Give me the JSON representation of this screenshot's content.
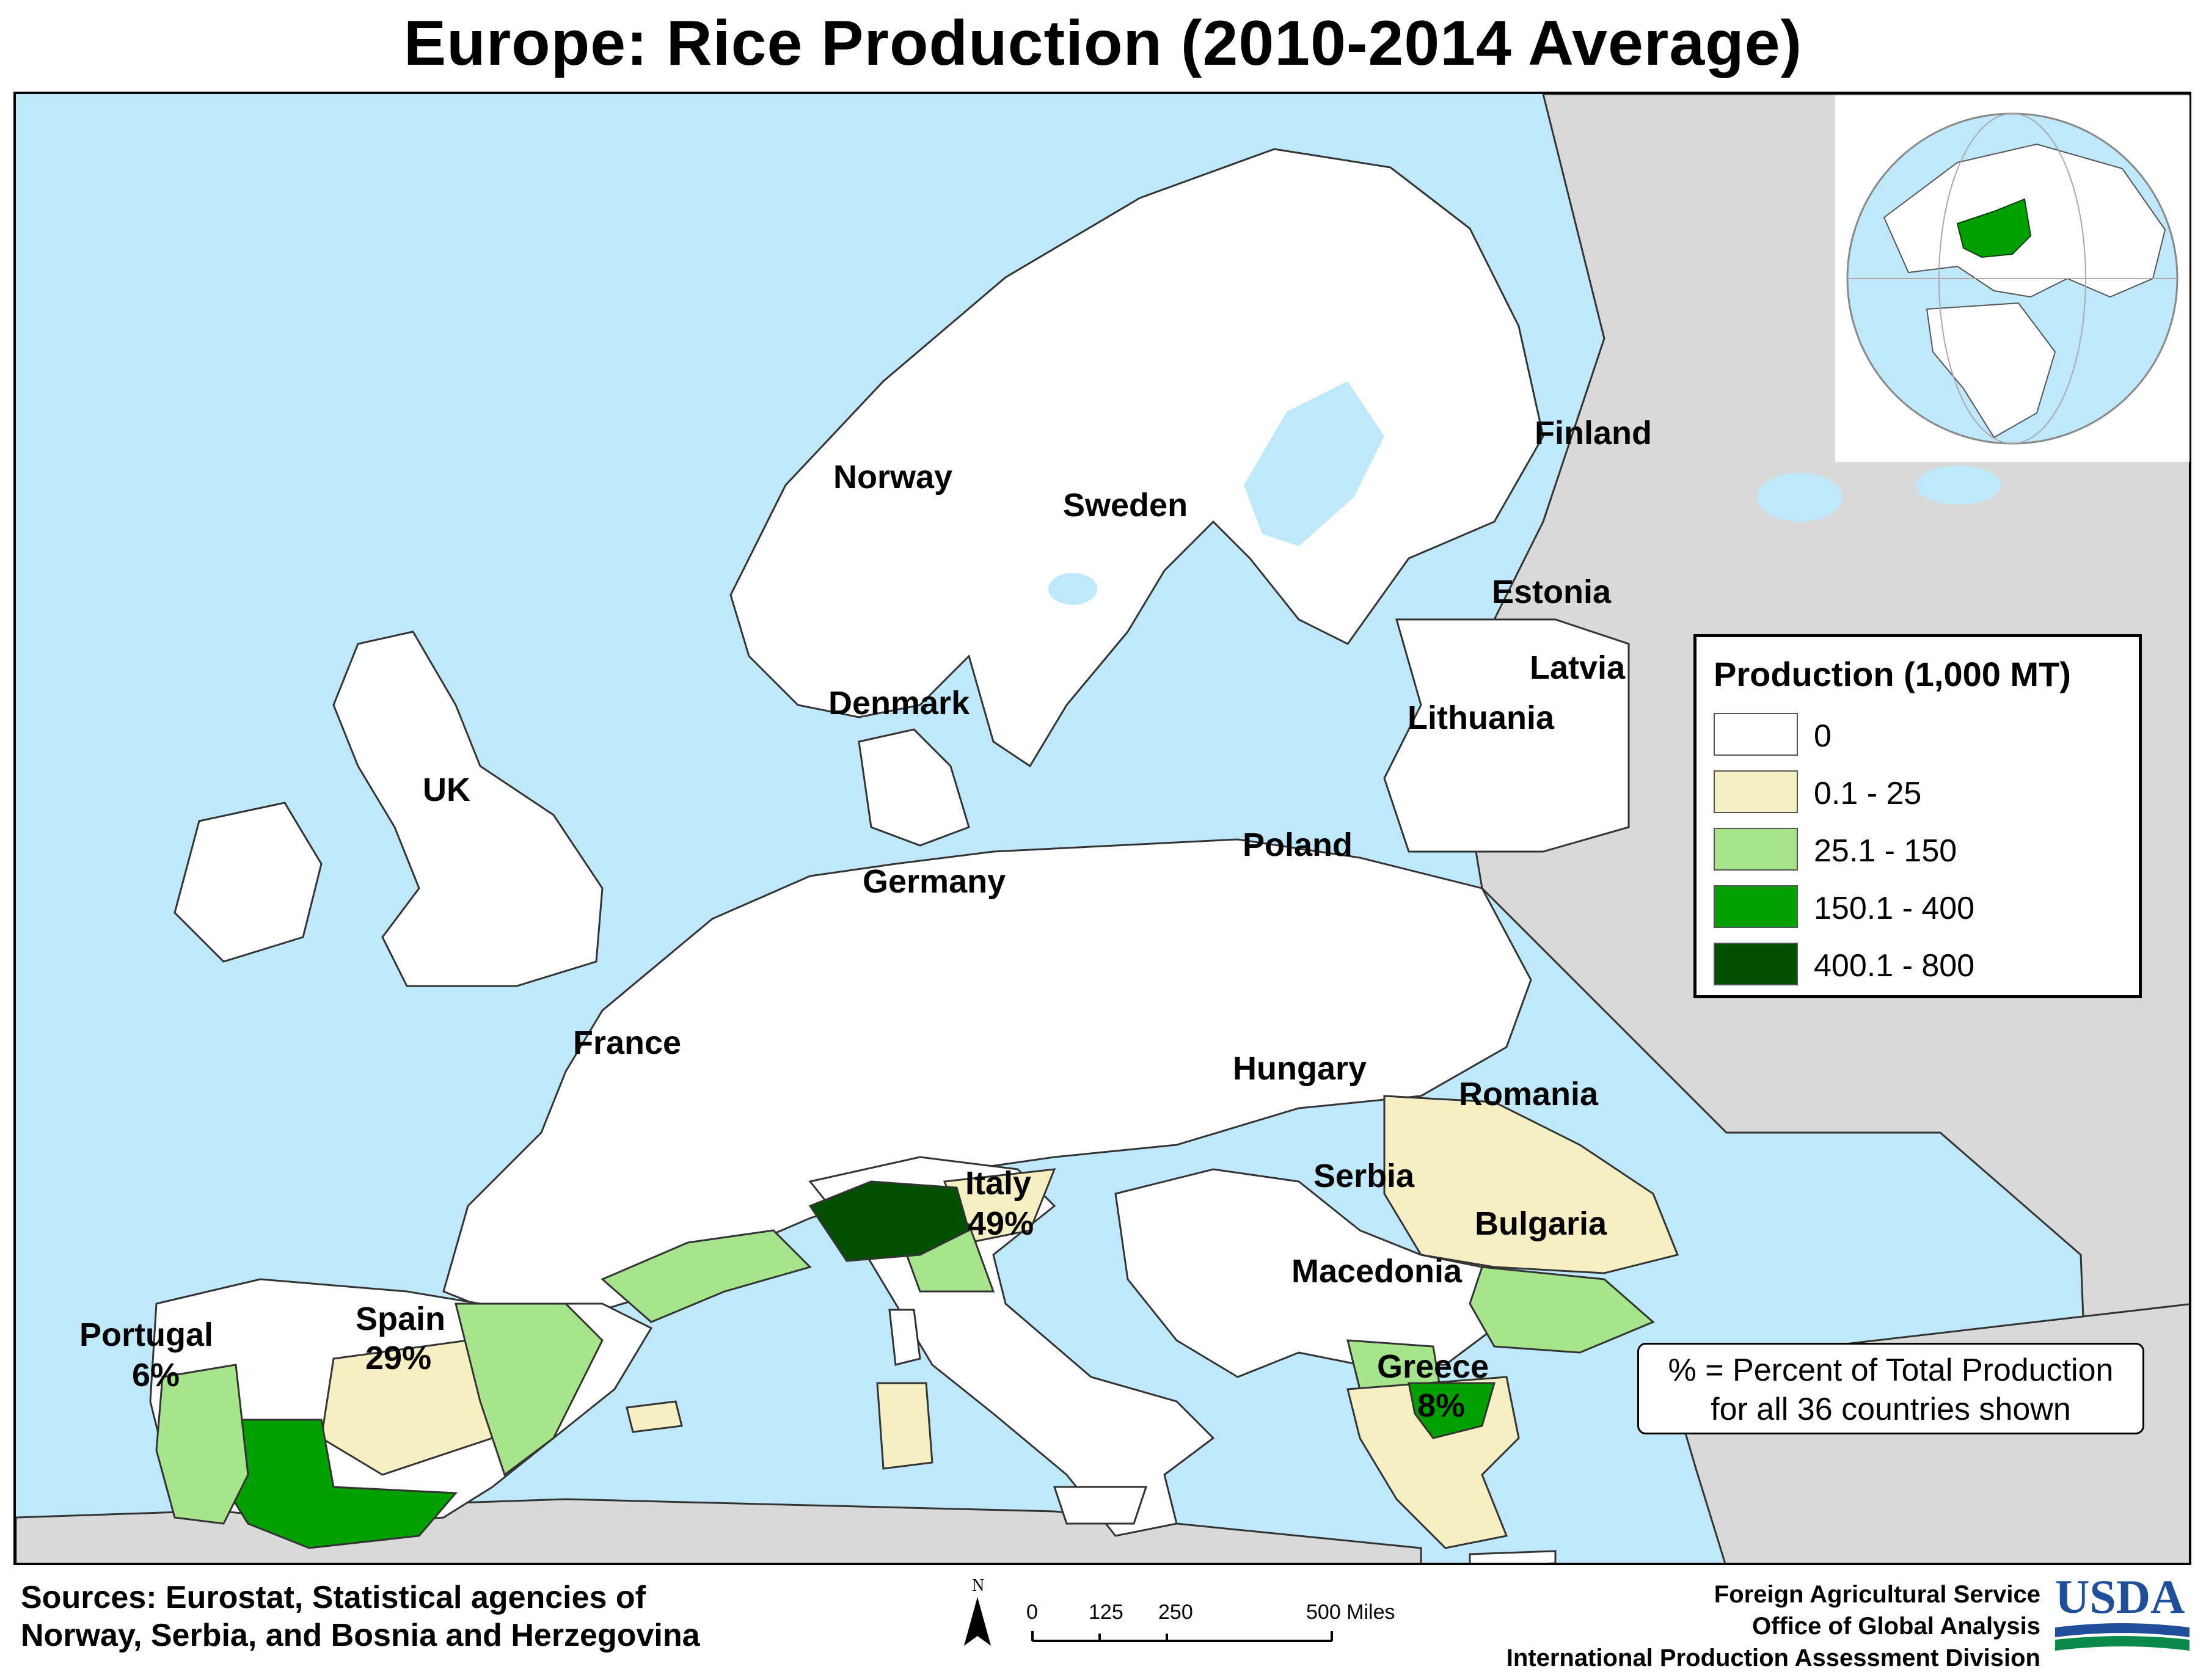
{
  "title": "Europe: Rice Production (2010-2014 Average)",
  "colors": {
    "sea": "#bfe9fb",
    "land_other": "#d9d9d9",
    "class_0": "#ffffff",
    "class_1": "#f5efc3",
    "class_2": "#a6e58b",
    "class_3": "#00a000",
    "class_4": "#005000"
  },
  "countries": {
    "norway": "Norway",
    "sweden": "Sweden",
    "finland": "Finland",
    "estonia": "Estonia",
    "latvia": "Latvia",
    "lithuania": "Lithuania",
    "denmark": "Denmark",
    "uk": "UK",
    "germany": "Germany",
    "poland": "Poland",
    "france": "France",
    "hungary": "Hungary",
    "romania": "Romania",
    "serbia": "Serbia",
    "bulgaria": "Bulgaria",
    "macedonia": "Macedonia",
    "greece": "Greece",
    "italy": "Italy",
    "spain": "Spain",
    "portugal": "Portugal"
  },
  "shares": {
    "italy": "49%",
    "spain": "29%",
    "greece": "8%",
    "portugal": "6%"
  },
  "legend": {
    "title": "Production (1,000 MT)",
    "classes": [
      "0",
      "0.1 - 25",
      "25.1 - 150",
      "150.1 - 400",
      "400.1 - 800"
    ]
  },
  "note": {
    "line1": "% = Percent of Total Production",
    "line2": "for all 36 countries shown"
  },
  "sources": {
    "line1": "Sources: Eurostat, Statistical agencies of",
    "line2": "Norway, Serbia, and Bosnia and Herzegovina"
  },
  "scale": {
    "north": "N",
    "ticks": [
      "0",
      "125",
      "250",
      "500 Miles"
    ]
  },
  "credits": {
    "line1": "Foreign Agricultural Service",
    "line2": "Office of Global Analysis",
    "line3": "International Production Assessment Division"
  },
  "logo": {
    "text": "USDA"
  }
}
